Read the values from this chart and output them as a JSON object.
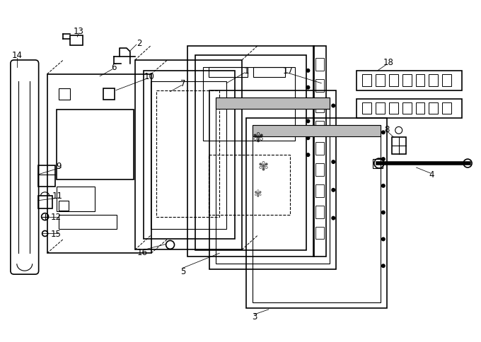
{
  "background_color": "#ffffff",
  "line_color": "#000000",
  "fig_width": 6.8,
  "fig_height": 4.85,
  "dpi": 100
}
